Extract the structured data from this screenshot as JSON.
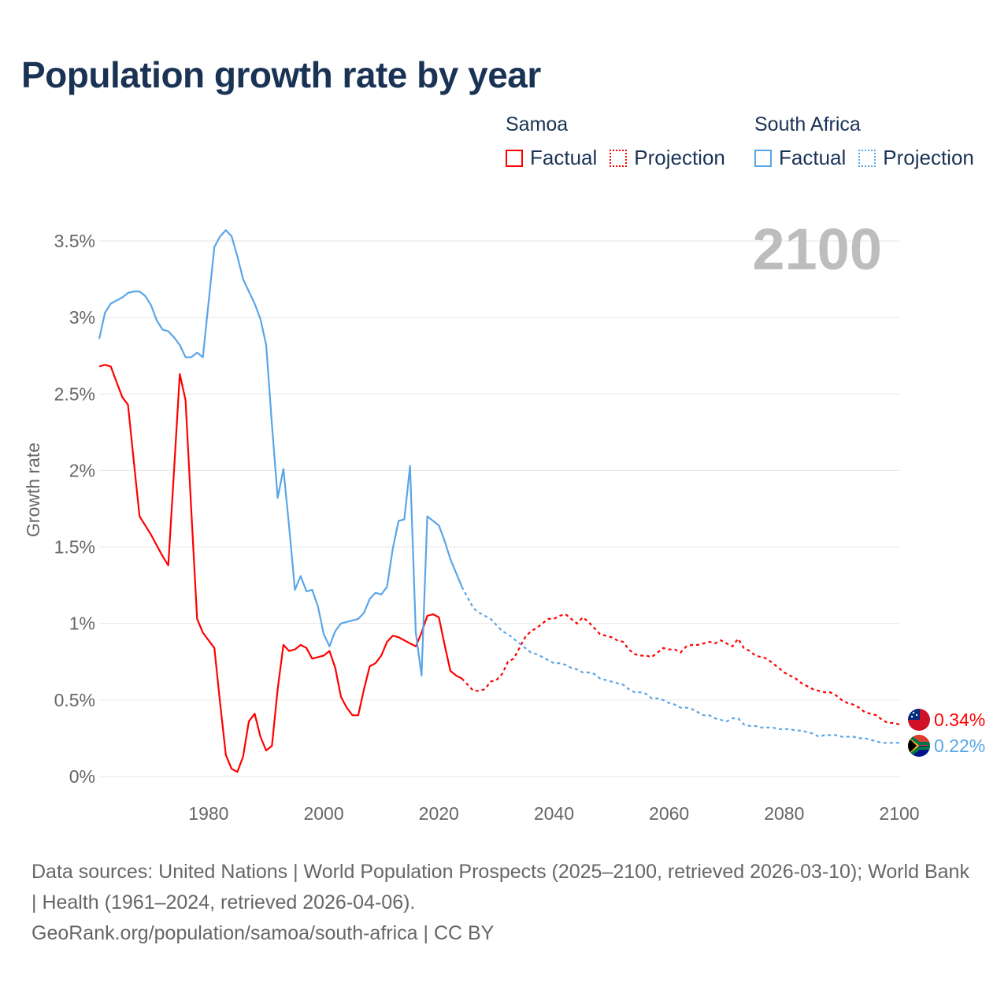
{
  "title": "Population growth rate by year",
  "legend": {
    "groups": [
      {
        "name": "Samoa",
        "factual": "Factual",
        "projection": "Projection",
        "color": "#ff0000"
      },
      {
        "name": "South Africa",
        "factual": "Factual",
        "projection": "Projection",
        "color": "#5aa5e8"
      }
    ]
  },
  "footer": {
    "sources": "Data sources: United Nations | World Population Prospects (2025–2100, retrieved 2026-03-10); World Bank | Health (1961–2024, retrieved 2026-04-06).",
    "credit": "GeoRank.org/population/samoa/south-africa | CC BY"
  },
  "chart_data": {
    "type": "line",
    "title": "Population growth rate by year",
    "ylabel": "Growth rate",
    "xlabel": "",
    "year_label": "2100",
    "xlim": [
      1961,
      2100
    ],
    "ylim": [
      0,
      3.6
    ],
    "x_ticks": [
      1980,
      2000,
      2020,
      2040,
      2060,
      2080,
      2100
    ],
    "x_tick_labels": [
      "1980",
      "2000",
      "2020",
      "2040",
      "2060",
      "2080",
      "2100"
    ],
    "y_ticks": [
      0,
      0.5,
      1,
      1.5,
      2,
      2.5,
      3,
      3.5
    ],
    "y_tick_labels": [
      "0%",
      "0.5%",
      "1%",
      "1.5%",
      "2%",
      "2.5%",
      "3%",
      "3.5%"
    ],
    "grid": true,
    "legend_position": "top-right",
    "series": [
      {
        "name": "Samoa",
        "color": "#ff0000",
        "end_label": "0.34%",
        "factual_start": 1961,
        "factual": [
          2.68,
          2.69,
          2.68,
          2.58,
          2.48,
          2.43,
          2.06,
          1.7,
          1.64,
          1.58,
          1.51,
          1.44,
          1.38,
          2.0,
          2.63,
          2.46,
          1.74,
          1.03,
          0.94,
          0.89,
          0.84,
          0.48,
          0.14,
          0.05,
          0.03,
          0.13,
          0.36,
          0.41,
          0.26,
          0.17,
          0.2,
          0.57,
          0.86,
          0.82,
          0.83,
          0.86,
          0.84,
          0.77,
          0.78,
          0.79,
          0.82,
          0.71,
          0.52,
          0.45,
          0.4,
          0.4,
          0.57,
          0.72,
          0.74,
          0.79,
          0.88,
          0.92,
          0.91,
          0.89,
          0.87,
          0.85,
          0.94,
          1.05,
          1.06,
          1.04,
          0.86,
          0.69,
          0.66,
          0.64
        ],
        "projection_start": 2024,
        "projection": [
          0.64,
          0.6,
          0.56,
          0.56,
          0.57,
          0.62,
          0.63,
          0.67,
          0.75,
          0.77,
          0.84,
          0.91,
          0.95,
          0.97,
          1.0,
          1.03,
          1.03,
          1.05,
          1.06,
          1.03,
          1.0,
          1.04,
          1.01,
          0.97,
          0.93,
          0.92,
          0.91,
          0.89,
          0.88,
          0.83,
          0.8,
          0.79,
          0.79,
          0.78,
          0.81,
          0.84,
          0.83,
          0.83,
          0.81,
          0.85,
          0.86,
          0.86,
          0.87,
          0.88,
          0.87,
          0.89,
          0.87,
          0.85,
          0.9,
          0.84,
          0.82,
          0.79,
          0.78,
          0.77,
          0.74,
          0.71,
          0.68,
          0.66,
          0.64,
          0.61,
          0.59,
          0.57,
          0.56,
          0.55,
          0.55,
          0.53,
          0.5,
          0.48,
          0.47,
          0.45,
          0.42,
          0.41,
          0.4,
          0.37,
          0.35,
          0.35,
          0.34
        ]
      },
      {
        "name": "South Africa",
        "color": "#5aa5e8",
        "end_label": "0.22%",
        "factual_start": 1961,
        "factual": [
          2.86,
          3.03,
          3.09,
          3.11,
          3.13,
          3.16,
          3.17,
          3.17,
          3.14,
          3.08,
          2.98,
          2.92,
          2.91,
          2.87,
          2.82,
          2.74,
          2.74,
          2.77,
          2.74,
          3.1,
          3.46,
          3.53,
          3.57,
          3.53,
          3.4,
          3.25,
          3.17,
          3.09,
          2.99,
          2.82,
          2.3,
          1.82,
          2.01,
          1.63,
          1.22,
          1.31,
          1.21,
          1.22,
          1.11,
          0.93,
          0.85,
          0.95,
          1.0,
          1.01,
          1.02,
          1.03,
          1.07,
          1.16,
          1.2,
          1.19,
          1.24,
          1.49,
          1.67,
          1.68,
          2.03,
          0.94,
          0.66,
          1.7,
          1.67,
          1.64,
          1.54,
          1.42,
          1.33,
          1.24
        ],
        "projection_start": 2024,
        "projection": [
          1.24,
          1.17,
          1.1,
          1.07,
          1.05,
          1.03,
          0.99,
          0.95,
          0.93,
          0.9,
          0.87,
          0.84,
          0.81,
          0.8,
          0.78,
          0.76,
          0.74,
          0.74,
          0.73,
          0.71,
          0.7,
          0.68,
          0.68,
          0.67,
          0.64,
          0.63,
          0.62,
          0.61,
          0.6,
          0.57,
          0.55,
          0.55,
          0.54,
          0.51,
          0.51,
          0.5,
          0.48,
          0.47,
          0.45,
          0.45,
          0.44,
          0.42,
          0.4,
          0.4,
          0.38,
          0.37,
          0.36,
          0.38,
          0.38,
          0.34,
          0.33,
          0.33,
          0.32,
          0.32,
          0.32,
          0.31,
          0.31,
          0.31,
          0.3,
          0.3,
          0.29,
          0.28,
          0.26,
          0.27,
          0.27,
          0.27,
          0.26,
          0.26,
          0.26,
          0.25,
          0.25,
          0.24,
          0.23,
          0.22,
          0.22,
          0.22,
          0.22
        ]
      }
    ]
  }
}
